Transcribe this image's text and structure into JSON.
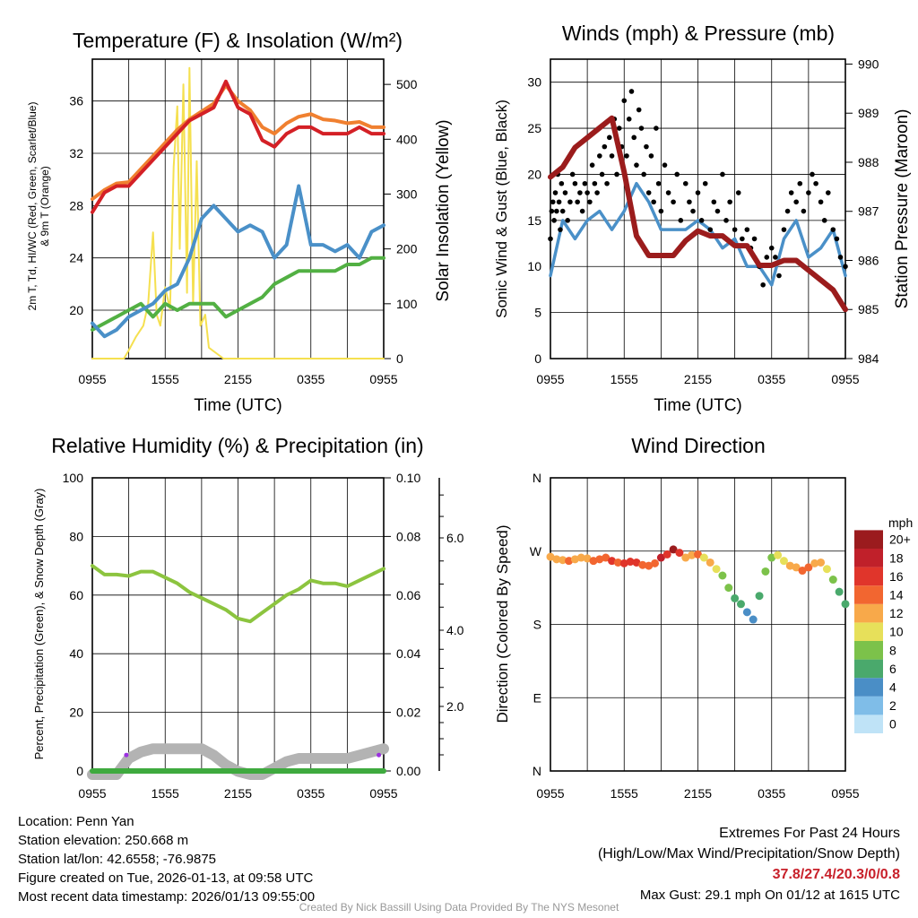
{
  "chart_data": [
    {
      "type": "line",
      "title": "Temperature (F) & Insolation (W/m²)",
      "xlabel": "Time (UTC)",
      "ylabel_line1": "2m T, Td, HI/WC (Red, Green, Scarlet/Blue)",
      "ylabel_line2": "& 9m T (Orange)",
      "ylabel_right": "Solar Insolation (Yellow)",
      "x_ticks": [
        "0955",
        "1555",
        "2155",
        "0355",
        "0955"
      ],
      "y_ticks": [
        "20",
        "24",
        "28",
        "32",
        "36"
      ],
      "y_ticks_right": [
        "0",
        "100",
        "200",
        "300",
        "400",
        "500"
      ],
      "ylim": [
        16.3,
        39.2
      ],
      "ylim_right": [
        0,
        546
      ],
      "x_hours": [
        0,
        1,
        2,
        3,
        4,
        5,
        6,
        7,
        8,
        9,
        10,
        11,
        12,
        13,
        14,
        15,
        16,
        17,
        18,
        19,
        20,
        21,
        22,
        23,
        24
      ],
      "series": [
        {
          "name": "2m T",
          "color": "#d42026",
          "values": [
            27.5,
            29,
            29.5,
            29.5,
            30.5,
            31.5,
            32.5,
            33.5,
            34.5,
            35,
            35.5,
            37.5,
            35.5,
            35,
            33,
            32.5,
            33.5,
            34,
            34,
            33.5,
            33.5,
            33.5,
            34,
            33.5,
            33.5
          ]
        },
        {
          "name": "9m T",
          "color": "#f08030",
          "values": [
            28.5,
            29.2,
            29.7,
            29.8,
            30.8,
            31.8,
            32.8,
            33.8,
            34.6,
            35.2,
            35.8,
            37.2,
            36,
            35.3,
            34,
            33.5,
            34.3,
            34.8,
            35,
            34.6,
            34.5,
            34.3,
            34.4,
            34,
            34
          ]
        },
        {
          "name": "HI/WC",
          "color": "#4a90c8",
          "values": [
            19,
            18,
            18.5,
            19.5,
            20,
            20.5,
            21.5,
            22,
            24,
            27,
            28,
            27,
            26,
            26.5,
            26,
            24,
            25,
            29.5,
            25,
            25,
            24.5,
            25,
            24,
            26,
            26.5
          ]
        },
        {
          "name": "Td",
          "color": "#52b043",
          "values": [
            18.5,
            19,
            19.5,
            20,
            20.5,
            19.5,
            20.5,
            20,
            20.5,
            20.5,
            20.5,
            19.5,
            20,
            20.5,
            21,
            22,
            22.5,
            23,
            23,
            23,
            23,
            23.5,
            23.5,
            24,
            24
          ]
        }
      ],
      "solar": {
        "name": "Solar Insolation",
        "color": "#f5e050",
        "points": [
          [
            0,
            0
          ],
          [
            2.6,
            0
          ],
          [
            3,
            15
          ],
          [
            3.6,
            40
          ],
          [
            4.2,
            60
          ],
          [
            4.6,
            100
          ],
          [
            5,
            230
          ],
          [
            5.3,
            80
          ],
          [
            5.6,
            60
          ],
          [
            6,
            130
          ],
          [
            6.4,
            90
          ],
          [
            6.7,
            350
          ],
          [
            7,
            460
          ],
          [
            7.2,
            200
          ],
          [
            7.5,
            500
          ],
          [
            7.8,
            120
          ],
          [
            8,
            530
          ],
          [
            8.3,
            100
          ],
          [
            8.6,
            360
          ],
          [
            8.9,
            60
          ],
          [
            9.3,
            80
          ],
          [
            9.6,
            20
          ],
          [
            10.2,
            10
          ],
          [
            10.8,
            0
          ],
          [
            24,
            0
          ]
        ]
      }
    },
    {
      "type": "line",
      "title": "Winds (mph) & Pressure (mb)",
      "xlabel": "Time (UTC)",
      "ylabel": "Sonic Wind & Gust (Blue, Black)",
      "ylabel_right": "Station Pressure (Maroon)",
      "x_ticks": [
        "0955",
        "1555",
        "2155",
        "0355",
        "0955"
      ],
      "y_ticks": [
        "0",
        "5",
        "10",
        "15",
        "20",
        "25",
        "30"
      ],
      "y_ticks_right": [
        "984",
        "985",
        "986",
        "987",
        "988",
        "989",
        "990"
      ],
      "ylim": [
        0,
        32.5
      ],
      "ylim_right": [
        984,
        990.1
      ],
      "x_hours": [
        0,
        1,
        2,
        3,
        4,
        5,
        6,
        7,
        8,
        9,
        10,
        11,
        12,
        13,
        14,
        15,
        16,
        17,
        18,
        19,
        20,
        21,
        22,
        23,
        24
      ],
      "series": [
        {
          "name": "Sonic Wind",
          "color": "#4a90c8",
          "values": [
            9,
            15,
            13,
            15,
            16,
            14,
            16,
            19,
            17,
            14,
            14,
            14,
            15,
            14,
            12,
            13,
            10,
            10,
            8,
            13,
            15,
            11,
            12,
            14,
            9
          ]
        },
        {
          "name": "Station Pressure",
          "color": "#9b1c1c",
          "values": [
            987.7,
            987.9,
            988.3,
            988.5,
            988.7,
            988.9,
            987.8,
            986.5,
            986.1,
            986.1,
            986.1,
            986.4,
            986.6,
            986.5,
            986.5,
            986.3,
            986.3,
            985.9,
            985.9,
            986.0,
            986.0,
            985.8,
            985.6,
            985.4,
            985.0
          ]
        }
      ],
      "gust": {
        "name": "Gust",
        "color": "#000000",
        "points": [
          [
            0,
            13
          ],
          [
            0.1,
            16
          ],
          [
            0.2,
            17
          ],
          [
            0.3,
            15
          ],
          [
            0.4,
            18
          ],
          [
            0.5,
            16
          ],
          [
            0.6,
            20
          ],
          [
            0.7,
            17
          ],
          [
            0.8,
            14
          ],
          [
            0.9,
            19
          ],
          [
            1,
            16
          ],
          [
            1.2,
            18
          ],
          [
            1.4,
            15
          ],
          [
            1.6,
            17
          ],
          [
            1.8,
            20
          ],
          [
            2,
            19
          ],
          [
            2.2,
            17
          ],
          [
            2.4,
            18
          ],
          [
            2.6,
            16
          ],
          [
            2.8,
            19
          ],
          [
            3,
            18
          ],
          [
            3.2,
            17
          ],
          [
            3.4,
            21
          ],
          [
            3.6,
            19
          ],
          [
            3.8,
            18
          ],
          [
            4,
            22
          ],
          [
            4.2,
            20
          ],
          [
            4.4,
            23
          ],
          [
            4.6,
            19
          ],
          [
            4.8,
            24
          ],
          [
            5,
            22
          ],
          [
            5.2,
            26
          ],
          [
            5.4,
            20
          ],
          [
            5.6,
            25
          ],
          [
            5.8,
            23
          ],
          [
            6,
            28
          ],
          [
            6.2,
            22
          ],
          [
            6.4,
            26
          ],
          [
            6.6,
            29
          ],
          [
            6.8,
            24
          ],
          [
            7,
            21
          ],
          [
            7.2,
            27
          ],
          [
            7.4,
            25
          ],
          [
            7.6,
            20
          ],
          [
            7.8,
            23
          ],
          [
            8,
            18
          ],
          [
            8.2,
            22
          ],
          [
            8.4,
            17
          ],
          [
            8.6,
            25
          ],
          [
            8.8,
            19
          ],
          [
            9,
            16
          ],
          [
            9.3,
            21
          ],
          [
            9.6,
            18
          ],
          [
            10,
            17
          ],
          [
            10.3,
            20
          ],
          [
            10.6,
            15
          ],
          [
            11,
            19
          ],
          [
            11.3,
            17
          ],
          [
            11.6,
            16
          ],
          [
            12,
            18
          ],
          [
            12.3,
            15
          ],
          [
            12.6,
            19
          ],
          [
            13,
            14
          ],
          [
            13.3,
            17
          ],
          [
            13.6,
            16
          ],
          [
            14,
            20
          ],
          [
            14.3,
            15
          ],
          [
            14.6,
            17
          ],
          [
            15,
            14
          ],
          [
            15.3,
            18
          ],
          [
            15.6,
            13
          ],
          [
            16,
            14
          ],
          [
            16.3,
            12
          ],
          [
            16.6,
            13
          ],
          [
            17,
            10
          ],
          [
            17.3,
            8
          ],
          [
            17.6,
            11
          ],
          [
            18,
            12
          ],
          [
            18.3,
            11
          ],
          [
            18.6,
            9
          ],
          [
            19,
            14
          ],
          [
            19.3,
            16
          ],
          [
            19.6,
            18
          ],
          [
            20,
            17
          ],
          [
            20.3,
            19
          ],
          [
            20.6,
            16
          ],
          [
            21,
            18
          ],
          [
            21.3,
            20
          ],
          [
            21.6,
            19
          ],
          [
            22,
            17
          ],
          [
            22.3,
            15
          ],
          [
            22.6,
            18
          ],
          [
            23,
            14
          ],
          [
            23.3,
            13
          ],
          [
            23.6,
            11
          ],
          [
            24,
            10
          ]
        ]
      }
    },
    {
      "type": "line",
      "title": "Relative Humidity (%) & Precipitation (in)",
      "ylabel": "Percent, Precipitation (Green), & Snow Depth (Gray)",
      "x_ticks": [
        "0955",
        "1555",
        "2155",
        "0355",
        "0955"
      ],
      "y_ticks": [
        "0",
        "20",
        "40",
        "60",
        "80",
        "100"
      ],
      "y_ticks_right": [
        "0.00",
        "0.02",
        "0.04",
        "0.06",
        "0.08",
        "0.10"
      ],
      "snow_ticks": [
        "2.0",
        "4.0",
        "6.0"
      ],
      "ylim": [
        0,
        100
      ],
      "ylim_right": [
        0,
        0.1
      ],
      "x_hours": [
        0,
        1,
        2,
        3,
        4,
        5,
        6,
        7,
        8,
        9,
        10,
        11,
        12,
        13,
        14,
        15,
        16,
        17,
        18,
        19,
        20,
        21,
        22,
        23,
        24
      ],
      "series": [
        {
          "name": "Relative Humidity",
          "color": "#8cc43f",
          "values": [
            70,
            67,
            67,
            66.5,
            68,
            68,
            66,
            64,
            61,
            59,
            57,
            55,
            52,
            51,
            54,
            57,
            60,
            62,
            65,
            64,
            64,
            63,
            65,
            67,
            69
          ]
        },
        {
          "name": "Precipitation",
          "color": "#3faa3f",
          "values": [
            0,
            0,
            0,
            0,
            0,
            0,
            0,
            0,
            0,
            0,
            0,
            0,
            0,
            0,
            0,
            0,
            0,
            0,
            0,
            0,
            0,
            0,
            0,
            0,
            0
          ]
        },
        {
          "name": "Snow Depth",
          "color": "#b3b3b3",
          "values": [
            0,
            0,
            0,
            0.5,
            0.7,
            0.8,
            0.8,
            0.8,
            0.8,
            0.8,
            0.6,
            0.3,
            0.1,
            0,
            0,
            0.2,
            0.4,
            0.5,
            0.5,
            0.5,
            0.5,
            0.5,
            0.6,
            0.7,
            0.8
          ]
        }
      ],
      "markers": {
        "color": "#9b30e0",
        "points": [
          [
            2.8,
            0.003
          ],
          [
            23.6,
            0.003
          ]
        ]
      }
    },
    {
      "type": "scatter",
      "title": "Wind Direction",
      "ylabel": "Direction (Colored By Speed)",
      "x_ticks": [
        "0955",
        "1555",
        "2155",
        "0355",
        "0955"
      ],
      "y_ticks": [
        "N",
        "E",
        "S",
        "W",
        "N"
      ],
      "ylim": [
        0,
        360
      ],
      "x_step_hours": 0.5,
      "direction": [
        263,
        260,
        259,
        258,
        260,
        262,
        261,
        258,
        260,
        262,
        258,
        256,
        255,
        257,
        256,
        253,
        252,
        255,
        262,
        266,
        272,
        268,
        262,
        265,
        266,
        262,
        256,
        248,
        240,
        225,
        212,
        205,
        195,
        186,
        215,
        245,
        262,
        265,
        258,
        252,
        250,
        246,
        250,
        255,
        256,
        248,
        235,
        220,
        205
      ],
      "speed": [
        12,
        13,
        12,
        14,
        13,
        12,
        13,
        14,
        15,
        14,
        16,
        15,
        16,
        17,
        16,
        14,
        15,
        14,
        18,
        17,
        20,
        16,
        13,
        12,
        14,
        11,
        12,
        10,
        9,
        8,
        7,
        6,
        5,
        4,
        6,
        8,
        9,
        10,
        11,
        12,
        13,
        14,
        14,
        13,
        12,
        10,
        8,
        7,
        7
      ],
      "colorbar": {
        "title": "mph",
        "labels": [
          "0",
          "2",
          "4",
          "6",
          "8",
          "10",
          "12",
          "14",
          "16",
          "18",
          "20+"
        ],
        "colors": [
          "#bfe3f7",
          "#7fbde8",
          "#4a8ec6",
          "#4aa96c",
          "#7cc24a",
          "#e7e05a",
          "#f8a94a",
          "#f26630",
          "#e0352b",
          "#c0202a",
          "#9b1b1e"
        ]
      }
    }
  ],
  "footer": {
    "location": "Location: Penn Yan",
    "elevation": "Station elevation: 250.668 m",
    "latlon": "Station lat/lon: 42.6558; -76.9875",
    "created": "Figure created on Tue, 2026-01-13, at 09:58 UTC",
    "recent": "Most recent data timestamp: 2026/01/13 09:55:00",
    "extremes_title": "Extremes For Past 24 Hours",
    "extremes_legend": "(High/Low/Max Wind/Precipitation/Snow Depth)",
    "extremes_values": "37.8/27.4/20.3/0/0.8",
    "max_gust": "Max Gust: 29.1 mph On 01/12 at 1615 UTC",
    "credit": "Created By Nick Bassill Using Data Provided By The NYS Mesonet"
  }
}
